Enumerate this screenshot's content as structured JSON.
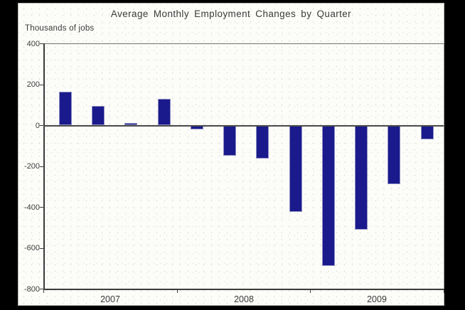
{
  "canvas": {
    "background_color": "#000000"
  },
  "chart": {
    "title": "Average Monthly Employment Changes by Quarter",
    "units_label": "Thousands of jobs"
  },
  "chart_data": {
    "type": "bar",
    "title": "Average Monthly Employment Changes by Quarter",
    "ylabel": "Thousands of jobs",
    "xlabel": "",
    "categories": [
      "2007 Q1",
      "2007 Q2",
      "2007 Q3",
      "2007 Q4",
      "2008 Q1",
      "2008 Q2",
      "2008 Q3",
      "2008 Q4",
      "2009 Q1",
      "2009 Q2",
      "2009 Q3",
      "2009 Q4"
    ],
    "values": [
      165,
      95,
      10,
      130,
      -20,
      -150,
      -165,
      -425,
      -690,
      -510,
      -290,
      -70
    ],
    "x_year_labels": [
      "2007",
      "2008",
      "2009"
    ],
    "y_ticks": [
      400,
      200,
      0,
      -200,
      -400,
      -600,
      -800
    ],
    "ylim": [
      -800,
      400
    ],
    "grid": false,
    "legend_position": "none",
    "bar_color": "#1a1a8c",
    "bar_edge_color": "#8f8fc4",
    "axis_color": "#3c3c3c",
    "zero_line_color": "#4a4a4a",
    "plot_background_color": "#fcfcf9",
    "text_color": "#3b3b3b"
  }
}
